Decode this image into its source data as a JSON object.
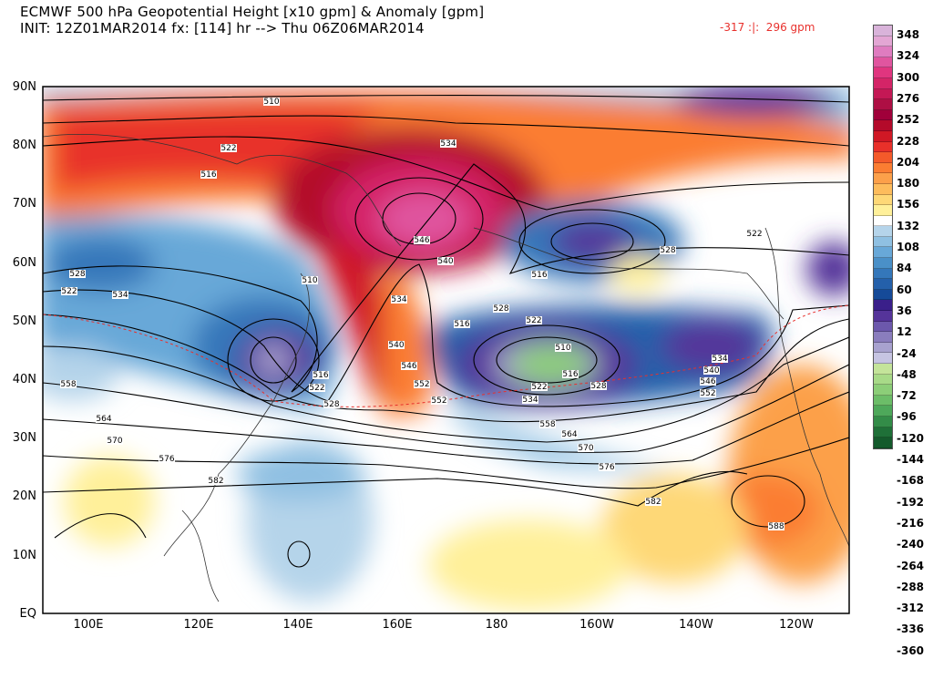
{
  "header": {
    "title_line1": "ECMWF 500 hPa Geopotential Height [x10 gpm] & Anomaly [gpm]",
    "title_line2": "INIT: 12Z01MAR2014 fx: [114] hr --> Thu 06Z06MAR2014",
    "anomaly_range": "-317 :|:  296 gpm"
  },
  "axes": {
    "lat_labels": [
      "90N",
      "80N",
      "70N",
      "60N",
      "50N",
      "40N",
      "30N",
      "20N",
      "10N",
      "EQ"
    ],
    "lon_labels": [
      "100E",
      "120E",
      "140E",
      "160E",
      "180",
      "160W",
      "140W",
      "120W"
    ]
  },
  "colorbar": {
    "labels": [
      "348",
      "324",
      "300",
      "276",
      "252",
      "228",
      "204",
      "180",
      "156",
      "132",
      "108",
      "84",
      "60",
      "36",
      "12",
      "-24",
      "-48",
      "-72",
      "-96",
      "-120",
      "-144",
      "-168",
      "-192",
      "-216",
      "-240",
      "-264",
      "-288",
      "-312",
      "-336",
      "-360"
    ],
    "colors": [
      "#d9b3da",
      "#e3a6d4",
      "#df7cc0",
      "#e0559f",
      "#e0357f",
      "#d42467",
      "#c41855",
      "#ae0f44",
      "#a0003a",
      "#b40a2a",
      "#d01825",
      "#e8302a",
      "#f45a2a",
      "#fb7d32",
      "#fca04a",
      "#fdbc5c",
      "#fed877",
      "#fff09a",
      "#ffffff",
      "#b5d4ea",
      "#8fc0e2",
      "#68a8d8",
      "#4a90c8",
      "#3477ba",
      "#2460aa",
      "#154a98",
      "#3a1f8a",
      "#55349a",
      "#6c58ac",
      "#8a7dbd",
      "#a8a2cf",
      "#c6c4e2",
      "#c4e49a",
      "#a8da88",
      "#8cce78",
      "#6cbd68",
      "#4ea85a",
      "#338c48",
      "#1f7038",
      "#145a2c"
    ]
  },
  "contour_labels": [
    "510",
    "522",
    "534",
    "516",
    "546",
    "540",
    "534",
    "528",
    "522",
    "516",
    "510",
    "534",
    "516",
    "522",
    "528",
    "546",
    "552",
    "540",
    "558",
    "564",
    "570",
    "576",
    "582",
    "528",
    "522",
    "516",
    "510",
    "534",
    "522",
    "528",
    "558",
    "564",
    "570",
    "576",
    "582",
    "534",
    "540",
    "546",
    "552",
    "528",
    "522",
    "588",
    "516",
    "552"
  ]
}
